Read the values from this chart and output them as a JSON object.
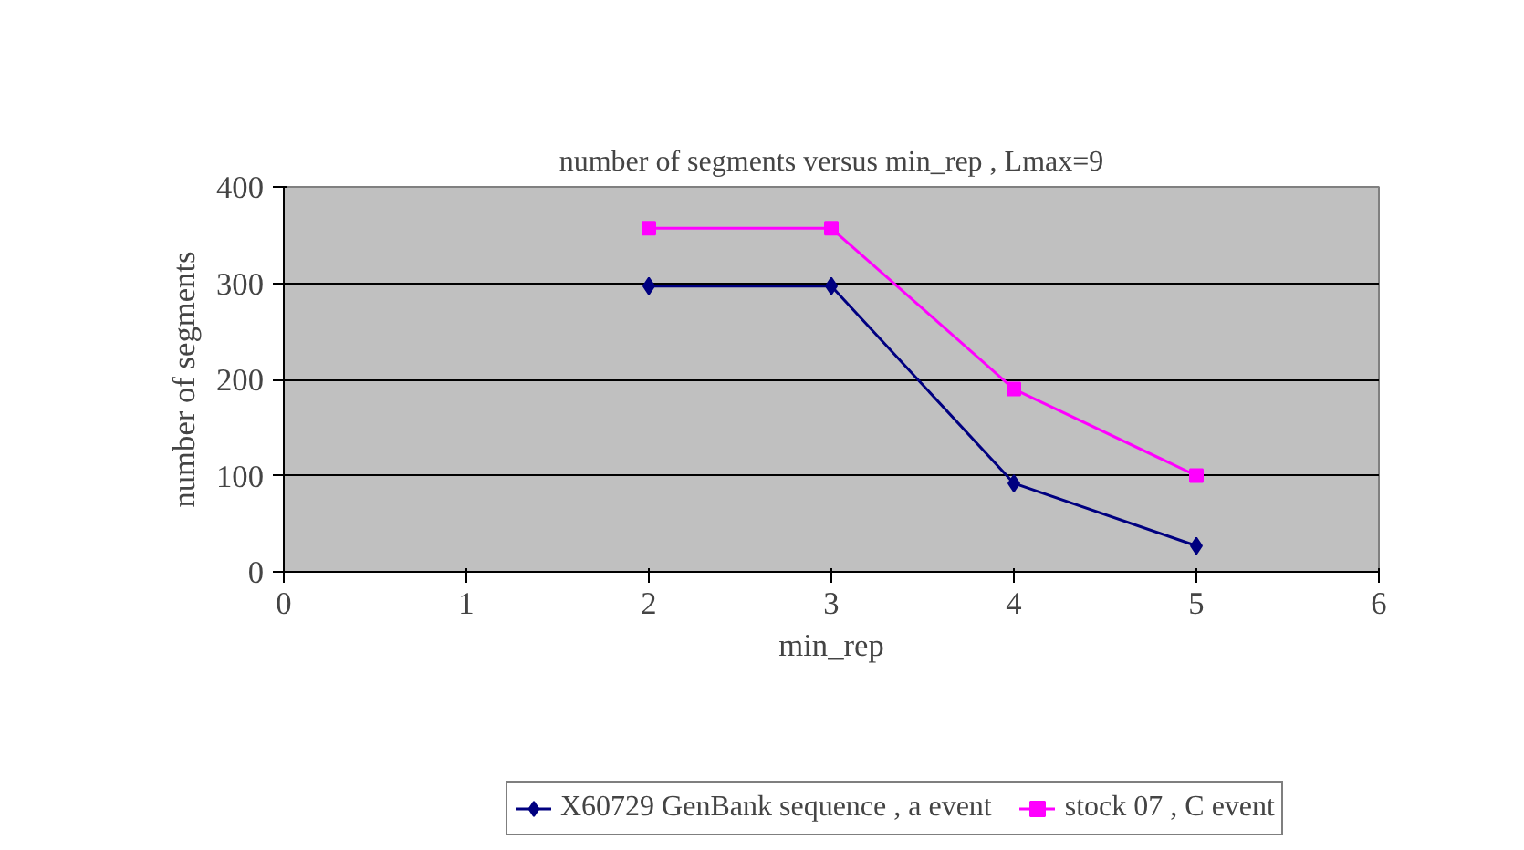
{
  "chart_data": {
    "type": "line",
    "title": "number of segments versus min_rep , Lmax=9",
    "xlabel": "min_rep",
    "ylabel": "number of segments",
    "x": [
      2,
      3,
      4,
      5
    ],
    "series": [
      {
        "name": "X60729 GenBank sequence , a event",
        "color": "#000080",
        "marker": "diamond",
        "values": [
          297,
          297,
          92,
          27
        ]
      },
      {
        "name": "stock 07 , C event",
        "color": "#ff00ff",
        "marker": "square",
        "values": [
          357,
          357,
          190,
          100
        ]
      }
    ],
    "xlim": [
      0,
      6
    ],
    "xticks": [
      0,
      1,
      2,
      3,
      4,
      5,
      6
    ],
    "ylim": [
      0,
      400
    ],
    "yticks": [
      0,
      100,
      200,
      300,
      400
    ],
    "grid": "y",
    "legend": "bottom",
    "line_style": "solid"
  }
}
